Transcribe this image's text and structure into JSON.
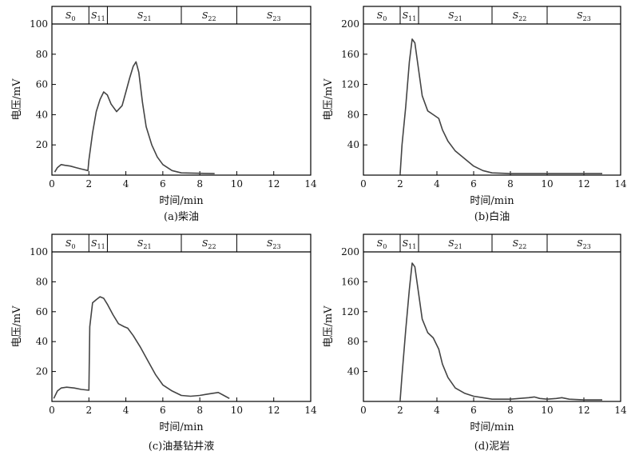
{
  "chart_data": [
    {
      "type": "line",
      "caption": "(a)柴油",
      "xlabel": "时间/min",
      "ylabel": "电压/mV",
      "xlim": [
        0,
        14
      ],
      "ylim": [
        0,
        100
      ],
      "xticks": [
        "0",
        "2",
        "4",
        "6",
        "8",
        "10",
        "12",
        "14"
      ],
      "yticks": [
        "20",
        "40",
        "60",
        "80",
        "100"
      ],
      "segments": [
        {
          "label": "S",
          "sub": "0",
          "from": 0,
          "to": 2
        },
        {
          "label": "S",
          "sub": "11",
          "from": 2,
          "to": 3
        },
        {
          "label": "S",
          "sub": "21",
          "from": 3,
          "to": 7
        },
        {
          "label": "S",
          "sub": "22",
          "from": 7,
          "to": 10
        },
        {
          "label": "S",
          "sub": "23",
          "from": 10,
          "to": 14
        }
      ],
      "series": [
        {
          "x": [
            0.15,
            0.3,
            0.5,
            0.7,
            1.0,
            1.3,
            1.6,
            1.95,
            2.0,
            2.2,
            2.4,
            2.6,
            2.8,
            3.0,
            3.2,
            3.5,
            3.8,
            4.0,
            4.2,
            4.4,
            4.55,
            4.7,
            4.9,
            5.1,
            5.4,
            5.7,
            6.0,
            6.5,
            7.0,
            8.0,
            8.8
          ],
          "y": [
            2,
            5,
            7,
            6.5,
            6,
            5,
            4,
            3,
            10,
            28,
            42,
            50,
            55,
            53,
            47,
            42,
            46,
            55,
            64,
            72,
            75,
            68,
            48,
            32,
            20,
            12,
            7,
            3,
            1.5,
            1.2,
            1
          ]
        }
      ]
    },
    {
      "type": "line",
      "caption": "(b)白油",
      "xlabel": "时间/min",
      "ylabel": "电压/mV",
      "xlim": [
        0,
        14
      ],
      "ylim": [
        0,
        200
      ],
      "xticks": [
        "0",
        "2",
        "4",
        "6",
        "8",
        "10",
        "12",
        "14"
      ],
      "yticks": [
        "40",
        "80",
        "120",
        "160",
        "200"
      ],
      "segments": [
        {
          "label": "S",
          "sub": "0",
          "from": 0,
          "to": 2
        },
        {
          "label": "S",
          "sub": "11",
          "from": 2,
          "to": 3
        },
        {
          "label": "S",
          "sub": "21",
          "from": 3,
          "to": 7
        },
        {
          "label": "S",
          "sub": "22",
          "from": 7,
          "to": 10
        },
        {
          "label": "S",
          "sub": "23",
          "from": 10,
          "to": 14
        }
      ],
      "series": [
        {
          "x": [
            2.0,
            2.1,
            2.3,
            2.5,
            2.65,
            2.8,
            3.0,
            3.2,
            3.5,
            3.8,
            4.1,
            4.3,
            4.6,
            5.0,
            5.5,
            6.0,
            6.5,
            7.0,
            8.0,
            10.0,
            13.0
          ],
          "y": [
            2,
            40,
            90,
            150,
            180,
            175,
            140,
            105,
            85,
            80,
            75,
            60,
            45,
            32,
            22,
            12,
            6,
            3,
            2,
            2,
            2
          ]
        }
      ]
    },
    {
      "type": "line",
      "caption": "(c)油基钻井液",
      "xlabel": "时间/min",
      "ylabel": "电压/mV",
      "xlim": [
        0,
        14
      ],
      "ylim": [
        0,
        100
      ],
      "xticks": [
        "0",
        "2",
        "4",
        "6",
        "8",
        "10",
        "12",
        "14"
      ],
      "yticks": [
        "20",
        "40",
        "60",
        "80",
        "100"
      ],
      "segments": [
        {
          "label": "S",
          "sub": "0",
          "from": 0,
          "to": 2
        },
        {
          "label": "S",
          "sub": "11",
          "from": 2,
          "to": 3
        },
        {
          "label": "S",
          "sub": "21",
          "from": 3,
          "to": 7
        },
        {
          "label": "S",
          "sub": "22",
          "from": 7,
          "to": 10
        },
        {
          "label": "S",
          "sub": "23",
          "from": 10,
          "to": 14
        }
      ],
      "series": [
        {
          "x": [
            0.1,
            0.3,
            0.5,
            0.8,
            1.2,
            1.6,
            2.0,
            2.05,
            2.2,
            2.4,
            2.6,
            2.8,
            3.0,
            3.3,
            3.6,
            3.9,
            4.1,
            4.4,
            4.8,
            5.2,
            5.6,
            6.0,
            6.5,
            7.0,
            7.5,
            8.0,
            8.5,
            9.0,
            9.3,
            9.6
          ],
          "y": [
            2,
            7,
            9,
            9.5,
            9,
            8,
            7.5,
            50,
            66,
            68,
            70,
            69,
            65,
            58,
            52,
            50,
            49,
            44,
            36,
            27,
            18,
            11,
            7,
            4,
            3.5,
            4,
            5,
            6,
            4,
            2
          ]
        }
      ]
    },
    {
      "type": "line",
      "caption": "(d)泥岩",
      "xlabel": "时间/min",
      "ylabel": "电压/mV",
      "xlim": [
        0,
        14
      ],
      "ylim": [
        0,
        200
      ],
      "xticks": [
        "0",
        "2",
        "4",
        "6",
        "8",
        "10",
        "12",
        "14"
      ],
      "yticks": [
        "40",
        "80",
        "120",
        "160",
        "200"
      ],
      "segments": [
        {
          "label": "S",
          "sub": "0",
          "from": 0,
          "to": 2
        },
        {
          "label": "S",
          "sub": "11",
          "from": 2,
          "to": 3
        },
        {
          "label": "S",
          "sub": "21",
          "from": 3,
          "to": 7
        },
        {
          "label": "S",
          "sub": "22",
          "from": 7,
          "to": 10
        },
        {
          "label": "S",
          "sub": "23",
          "from": 10,
          "to": 14
        }
      ],
      "series": [
        {
          "x": [
            2.0,
            2.1,
            2.3,
            2.5,
            2.65,
            2.8,
            3.0,
            3.2,
            3.5,
            3.8,
            4.1,
            4.3,
            4.6,
            5.0,
            5.5,
            6.0,
            6.5,
            7.0,
            8.0,
            9.0,
            9.3,
            9.6,
            10.0,
            10.5,
            10.8,
            11.2,
            12.0,
            13.0
          ],
          "y": [
            2,
            35,
            95,
            150,
            185,
            180,
            145,
            110,
            92,
            85,
            70,
            50,
            32,
            18,
            11,
            7,
            5,
            3,
            3,
            5,
            6,
            4,
            3,
            4,
            5,
            3,
            2,
            2
          ]
        }
      ]
    }
  ]
}
